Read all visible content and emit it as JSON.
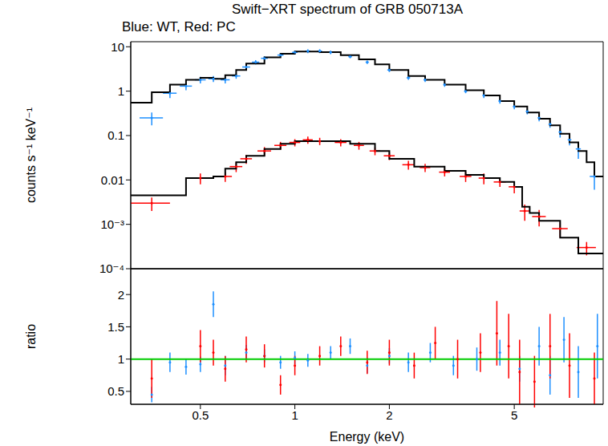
{
  "title": "Swift−XRT spectrum of GRB 050713A",
  "subtitle": "Blue: WT, Red: PC",
  "chart_data": [
    {
      "type": "scatter",
      "y_label": "counts s⁻¹ keV⁻¹",
      "log": true,
      "tick_labels": "y",
      "xlim": [
        0.3,
        9.6
      ],
      "xticks": [
        0.5,
        1,
        2,
        5
      ],
      "ylim": [
        0.0001,
        13
      ],
      "yticks": [
        {
          "value": 0.0001,
          "label": "10⁻⁴"
        },
        {
          "value": 0.001,
          "label": "10⁻³"
        },
        0.01,
        0.1,
        1,
        10
      ],
      "series": [
        {
          "name": "WT",
          "color": "#1e90ff",
          "x": [
            0.35,
            0.4,
            0.45,
            0.5,
            0.55,
            0.6,
            0.65,
            0.7,
            0.75,
            0.8,
            0.9,
            1.0,
            1.1,
            1.2,
            1.3,
            1.5,
            1.7,
            2.0,
            2.3,
            2.6,
            3,
            3.5,
            4,
            4.5,
            5,
            5.5,
            6,
            6.5,
            7,
            7.5,
            8,
            9
          ],
          "values": [
            0.25,
            0.9,
            1.3,
            1.8,
            1.9,
            1.8,
            2.2,
            3.5,
            4.5,
            5.5,
            6.5,
            7.5,
            8,
            8,
            7.5,
            6,
            4.5,
            3,
            2,
            1.8,
            1.4,
            1,
            0.8,
            0.6,
            0.45,
            0.35,
            0.25,
            0.18,
            0.12,
            0.08,
            0.05,
            0.012
          ],
          "y_errors": [
            0.08,
            0.2,
            0.25,
            0.3,
            0.3,
            0.3,
            0.3,
            0.5,
            0.5,
            0.6,
            0.6,
            0.7,
            0.8,
            0.8,
            0.7,
            0.5,
            0.4,
            0.3,
            0.2,
            0.2,
            0.15,
            0.1,
            0.1,
            0.08,
            0.06,
            0.05,
            0.04,
            0.03,
            0.03,
            0.02,
            0.02,
            0.006
          ],
          "x_errors": [
            0.03,
            0.02,
            0.02,
            0.02,
            0.02,
            0.02,
            0.02,
            0.02,
            0.02,
            0.02,
            0.02,
            0.02,
            0.02,
            0.02,
            0.02,
            0.02,
            0.02,
            0.03,
            0.03,
            0.03,
            0.03,
            0.04,
            0.04,
            0.05,
            0.05,
            0.06,
            0.06,
            0.07,
            0.08,
            0.1,
            0.15,
            0.3
          ]
        },
        {
          "name": "PC",
          "color": "#ff0000",
          "x": [
            0.35,
            0.5,
            0.6,
            0.65,
            0.7,
            0.8,
            0.9,
            1.0,
            1.1,
            1.2,
            1.4,
            1.6,
            1.8,
            2.0,
            2.3,
            2.6,
            3,
            3.5,
            4,
            4.5,
            5,
            5.4,
            6,
            7,
            8.5
          ],
          "values": [
            0.003,
            0.011,
            0.012,
            0.02,
            0.03,
            0.045,
            0.06,
            0.07,
            0.08,
            0.075,
            0.07,
            0.06,
            0.045,
            0.035,
            0.022,
            0.019,
            0.015,
            0.012,
            0.011,
            0.009,
            0.007,
            0.002,
            0.0015,
            0.0008,
            0.0003
          ],
          "y_errors": [
            0.001,
            0.003,
            0.003,
            0.005,
            0.007,
            0.01,
            0.012,
            0.013,
            0.015,
            0.014,
            0.013,
            0.012,
            0.009,
            0.007,
            0.005,
            0.004,
            0.003,
            0.003,
            0.003,
            0.002,
            0.002,
            0.0008,
            0.0006,
            0.0003,
            0.0001
          ],
          "x_errors": [
            0.05,
            0.05,
            0.03,
            0.03,
            0.03,
            0.04,
            0.04,
            0.04,
            0.04,
            0.05,
            0.06,
            0.06,
            0.07,
            0.08,
            0.1,
            0.1,
            0.12,
            0.15,
            0.15,
            0.2,
            0.2,
            0.2,
            0.3,
            0.4,
            0.6
          ]
        },
        {
          "type": "line",
          "line_style": "step",
          "color": "#000000",
          "x": [
            0.3,
            0.35,
            0.4,
            0.45,
            0.5,
            0.55,
            0.6,
            0.65,
            0.7,
            0.8,
            0.9,
            1,
            1.2,
            1.4,
            1.6,
            1.8,
            2,
            2.3,
            2.6,
            3,
            3.5,
            4,
            4.5,
            5,
            5.5,
            6,
            6.5,
            7,
            7.5,
            8,
            8.5,
            9,
            9.6
          ],
          "values": [
            0.55,
            0.95,
            1.4,
            1.8,
            2.0,
            1.9,
            2.3,
            3.0,
            4.2,
            5.8,
            7,
            7.8,
            7.6,
            6.5,
            5.2,
            4,
            3,
            2.2,
            1.8,
            1.4,
            1.05,
            0.8,
            0.6,
            0.45,
            0.33,
            0.24,
            0.17,
            0.11,
            0.07,
            0.045,
            0.025,
            0.012,
            0.012
          ]
        },
        {
          "type": "line",
          "line_style": "step",
          "color": "#000000",
          "x": [
            0.3,
            0.45,
            0.55,
            0.6,
            0.65,
            0.7,
            0.8,
            0.9,
            1.0,
            1.2,
            1.5,
            1.8,
            2.0,
            2.4,
            3,
            3.5,
            4,
            4.5,
            5,
            5.3,
            5.6,
            6,
            7,
            8,
            9.6
          ],
          "values": [
            0.0045,
            0.011,
            0.012,
            0.018,
            0.025,
            0.035,
            0.05,
            0.065,
            0.075,
            0.075,
            0.065,
            0.045,
            0.03,
            0.02,
            0.016,
            0.013,
            0.011,
            0.009,
            0.007,
            0.0025,
            0.0018,
            0.0012,
            0.0005,
            0.00022,
            0.00022
          ]
        }
      ]
    },
    {
      "type": "scatter",
      "x_label": "Energy (keV)",
      "y_label": "ratio",
      "log": "x",
      "xlim": [
        0.3,
        9.6
      ],
      "xticks": [
        0.5,
        1,
        2,
        5
      ],
      "ylim": [
        0.3,
        2.4
      ],
      "yticks": [
        0.5,
        1,
        1.5,
        2
      ],
      "series": [
        {
          "name": "WT",
          "color": "#1e90ff",
          "x": [
            0.35,
            0.4,
            0.45,
            0.5,
            0.55,
            0.6,
            0.7,
            0.8,
            0.9,
            1.0,
            1.1,
            1.3,
            1.5,
            1.7,
            2.0,
            2.3,
            2.7,
            3.2,
            3.8,
            4.5,
            5.2,
            6,
            6.5,
            7.2,
            8,
            9.2
          ],
          "values": [
            0.45,
            0.95,
            0.88,
            0.92,
            1.85,
            0.9,
            1.1,
            1.05,
            0.95,
            1.02,
            0.98,
            1.1,
            1.2,
            0.9,
            1.05,
            0.95,
            1.1,
            0.9,
            1.0,
            1.1,
            0.85,
            1.2,
            0.75,
            1.3,
            0.8,
            1.2
          ],
          "y_errors": [
            0.12,
            0.15,
            0.12,
            0.12,
            0.2,
            0.15,
            0.12,
            0.1,
            0.1,
            0.1,
            0.1,
            0.1,
            0.12,
            0.12,
            0.12,
            0.15,
            0.15,
            0.15,
            0.18,
            0.2,
            0.2,
            0.3,
            0.3,
            0.35,
            0.4,
            0.5
          ]
        },
        {
          "name": "PC",
          "color": "#ff0000",
          "x": [
            0.35,
            0.5,
            0.55,
            0.6,
            0.7,
            0.8,
            0.9,
            1.0,
            1.2,
            1.4,
            1.7,
            2,
            2.4,
            2.8,
            3.3,
            3.9,
            4.4,
            4.8,
            5.2,
            5.8,
            6.5,
            7.5,
            9
          ],
          "values": [
            0.7,
            1.2,
            1.1,
            0.85,
            1.15,
            1.05,
            0.6,
            0.9,
            1.05,
            1.2,
            0.95,
            1.1,
            0.9,
            1.25,
            1.0,
            1.1,
            1.4,
            1.2,
            0.8,
            0.65,
            1.2,
            0.9,
            0.7
          ],
          "y_errors": [
            0.3,
            0.25,
            0.2,
            0.2,
            0.2,
            0.18,
            0.15,
            0.15,
            0.15,
            0.15,
            0.18,
            0.2,
            0.2,
            0.25,
            0.3,
            0.3,
            0.5,
            0.5,
            0.5,
            0.4,
            0.5,
            0.5,
            0.4
          ]
        },
        {
          "type": "line",
          "color": "#00cc00",
          "x": [
            0.3,
            9.6
          ],
          "values": [
            1,
            1
          ]
        }
      ]
    }
  ]
}
